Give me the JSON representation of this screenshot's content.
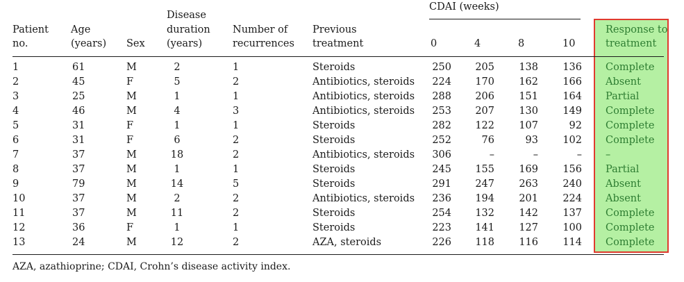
{
  "table": {
    "cdai_group_label": "CDAI (weeks)",
    "headers": {
      "patient": [
        "Patient",
        "no."
      ],
      "age": [
        "Age",
        "(years)"
      ],
      "sex": [
        "Sex"
      ],
      "duration": [
        "Disease",
        "duration",
        "(years)"
      ],
      "recurrences": [
        "Number of",
        "recurrences"
      ],
      "previous": [
        "Previous",
        "treatment"
      ],
      "w0": "0",
      "w4": "4",
      "w8": "8",
      "w10": "10",
      "response": [
        "Response to",
        "treatment"
      ]
    },
    "rows": [
      {
        "no": "1",
        "age": "61",
        "sex": "M",
        "dur": "2",
        "rec": "1",
        "prev": "Steroids",
        "w0": "250",
        "w4": "205",
        "w8": "138",
        "w10": "136",
        "resp": "Complete"
      },
      {
        "no": "2",
        "age": "45",
        "sex": "F",
        "dur": "5",
        "rec": "2",
        "prev": "Antibiotics, steroids",
        "w0": "224",
        "w4": "170",
        "w8": "162",
        "w10": "166",
        "resp": "Absent"
      },
      {
        "no": "3",
        "age": "25",
        "sex": "M",
        "dur": "1",
        "rec": "1",
        "prev": "Antibiotics, steroids",
        "w0": "288",
        "w4": "206",
        "w8": "151",
        "w10": "164",
        "resp": "Partial"
      },
      {
        "no": "4",
        "age": "46",
        "sex": "M",
        "dur": "4",
        "rec": "3",
        "prev": "Antibiotics, steroids",
        "w0": "253",
        "w4": "207",
        "w8": "130",
        "w10": "149",
        "resp": "Complete"
      },
      {
        "no": "5",
        "age": "31",
        "sex": "F",
        "dur": "1",
        "rec": "1",
        "prev": "Steroids",
        "w0": "282",
        "w4": "122",
        "w8": "107",
        "w10": "92",
        "resp": "Complete"
      },
      {
        "no": "6",
        "age": "31",
        "sex": "F",
        "dur": "6",
        "rec": "2",
        "prev": "Steroids",
        "w0": "252",
        "w4": "76",
        "w8": "93",
        "w10": "102",
        "resp": "Complete"
      },
      {
        "no": "7",
        "age": "37",
        "sex": "M",
        "dur": "18",
        "rec": "2",
        "prev": "Antibiotics, steroids",
        "w0": "306",
        "w4": "–",
        "w8": "–",
        "w10": "–",
        "resp": "–"
      },
      {
        "no": "8",
        "age": "37",
        "sex": "M",
        "dur": "1",
        "rec": "1",
        "prev": "Steroids",
        "w0": "245",
        "w4": "155",
        "w8": "169",
        "w10": "156",
        "resp": "Partial"
      },
      {
        "no": "9",
        "age": "79",
        "sex": "M",
        "dur": "14",
        "rec": "5",
        "prev": "Steroids",
        "w0": "291",
        "w4": "247",
        "w8": "263",
        "w10": "240",
        "resp": "Absent"
      },
      {
        "no": "10",
        "age": "37",
        "sex": "M",
        "dur": "2",
        "rec": "2",
        "prev": "Antibiotics, steroids",
        "w0": "236",
        "w4": "194",
        "w8": "201",
        "w10": "224",
        "resp": "Absent"
      },
      {
        "no": "11",
        "age": "37",
        "sex": "M",
        "dur": "11",
        "rec": "2",
        "prev": "Steroids",
        "w0": "254",
        "w4": "132",
        "w8": "142",
        "w10": "137",
        "resp": "Complete"
      },
      {
        "no": "12",
        "age": "36",
        "sex": "F",
        "dur": "1",
        "rec": "1",
        "prev": "Steroids",
        "w0": "223",
        "w4": "141",
        "w8": "127",
        "w10": "100",
        "resp": "Complete"
      },
      {
        "no": "13",
        "age": "24",
        "sex": "M",
        "dur": "12",
        "rec": "2",
        "prev": "AZA, steroids",
        "w0": "226",
        "w4": "118",
        "w8": "116",
        "w10": "114",
        "resp": "Complete"
      }
    ]
  },
  "footnote": "AZA, azathioprine; CDAI, Crohn’s disease activity index.",
  "colors": {
    "highlight_fill": "#b5f0a3",
    "highlight_border": "#e03a2e",
    "response_text": "#2e7d32"
  }
}
